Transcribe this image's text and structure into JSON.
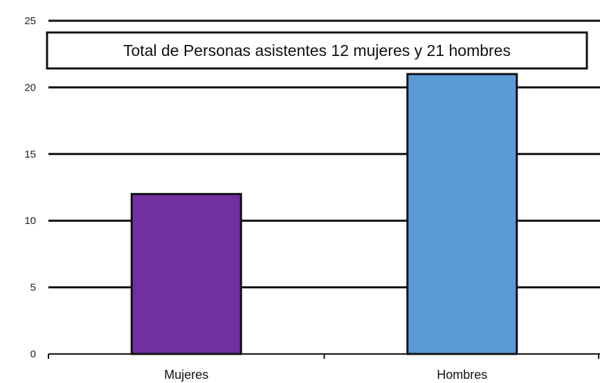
{
  "chart_data": {
    "type": "bar",
    "title": "Total de Personas asistentes 12 mujeres y 21 hombres",
    "categories": [
      "Mujeres",
      "Hombres"
    ],
    "values": [
      12,
      21
    ],
    "colors": [
      "#7030a0",
      "#5b9bd5"
    ],
    "ylim": [
      0,
      25
    ],
    "yticks": [
      0,
      5,
      10,
      15,
      20,
      25
    ],
    "grid": true,
    "legend": "none"
  }
}
